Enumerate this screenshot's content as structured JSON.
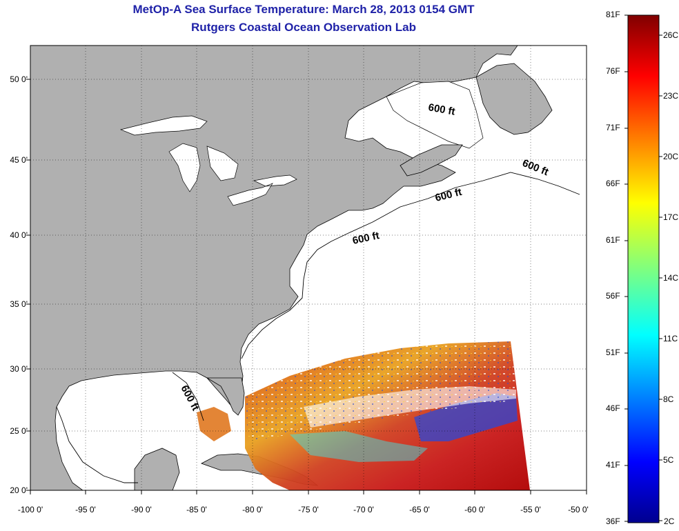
{
  "title": "MetOp-A Sea Surface Temperature:  March 28, 2013 0154 GMT",
  "subtitle": "Rutgers Coastal Ocean Observation Lab",
  "lat_ticks": [
    "50 0'",
    "45 0'",
    "40 0'",
    "35 0'",
    "30 0'",
    "25 0'",
    "20 0'"
  ],
  "lon_ticks": [
    "-100 0'",
    "-95 0'",
    "-90 0'",
    "-85 0'",
    "-80 0'",
    "-75 0'",
    "-70 0'",
    "-65 0'",
    "-60 0'",
    "-55 0'",
    "-50 0'"
  ],
  "contour_labels": [
    "600 ft",
    "600 ft",
    "600 ft",
    "600 ft",
    "600 ft"
  ],
  "colorbar": {
    "fahrenheit": [
      "81F",
      "76F",
      "71F",
      "66F",
      "61F",
      "56F",
      "51F",
      "46F",
      "41F",
      "36F"
    ],
    "celsius": [
      "26C",
      "23C",
      "20C",
      "17C",
      "14C",
      "11C",
      "8C",
      "5C",
      "2C"
    ]
  },
  "colors": {
    "title": "#1f22a8",
    "land": "#b0b0b0",
    "ocean": "#ffffff",
    "grid": "#000000"
  }
}
